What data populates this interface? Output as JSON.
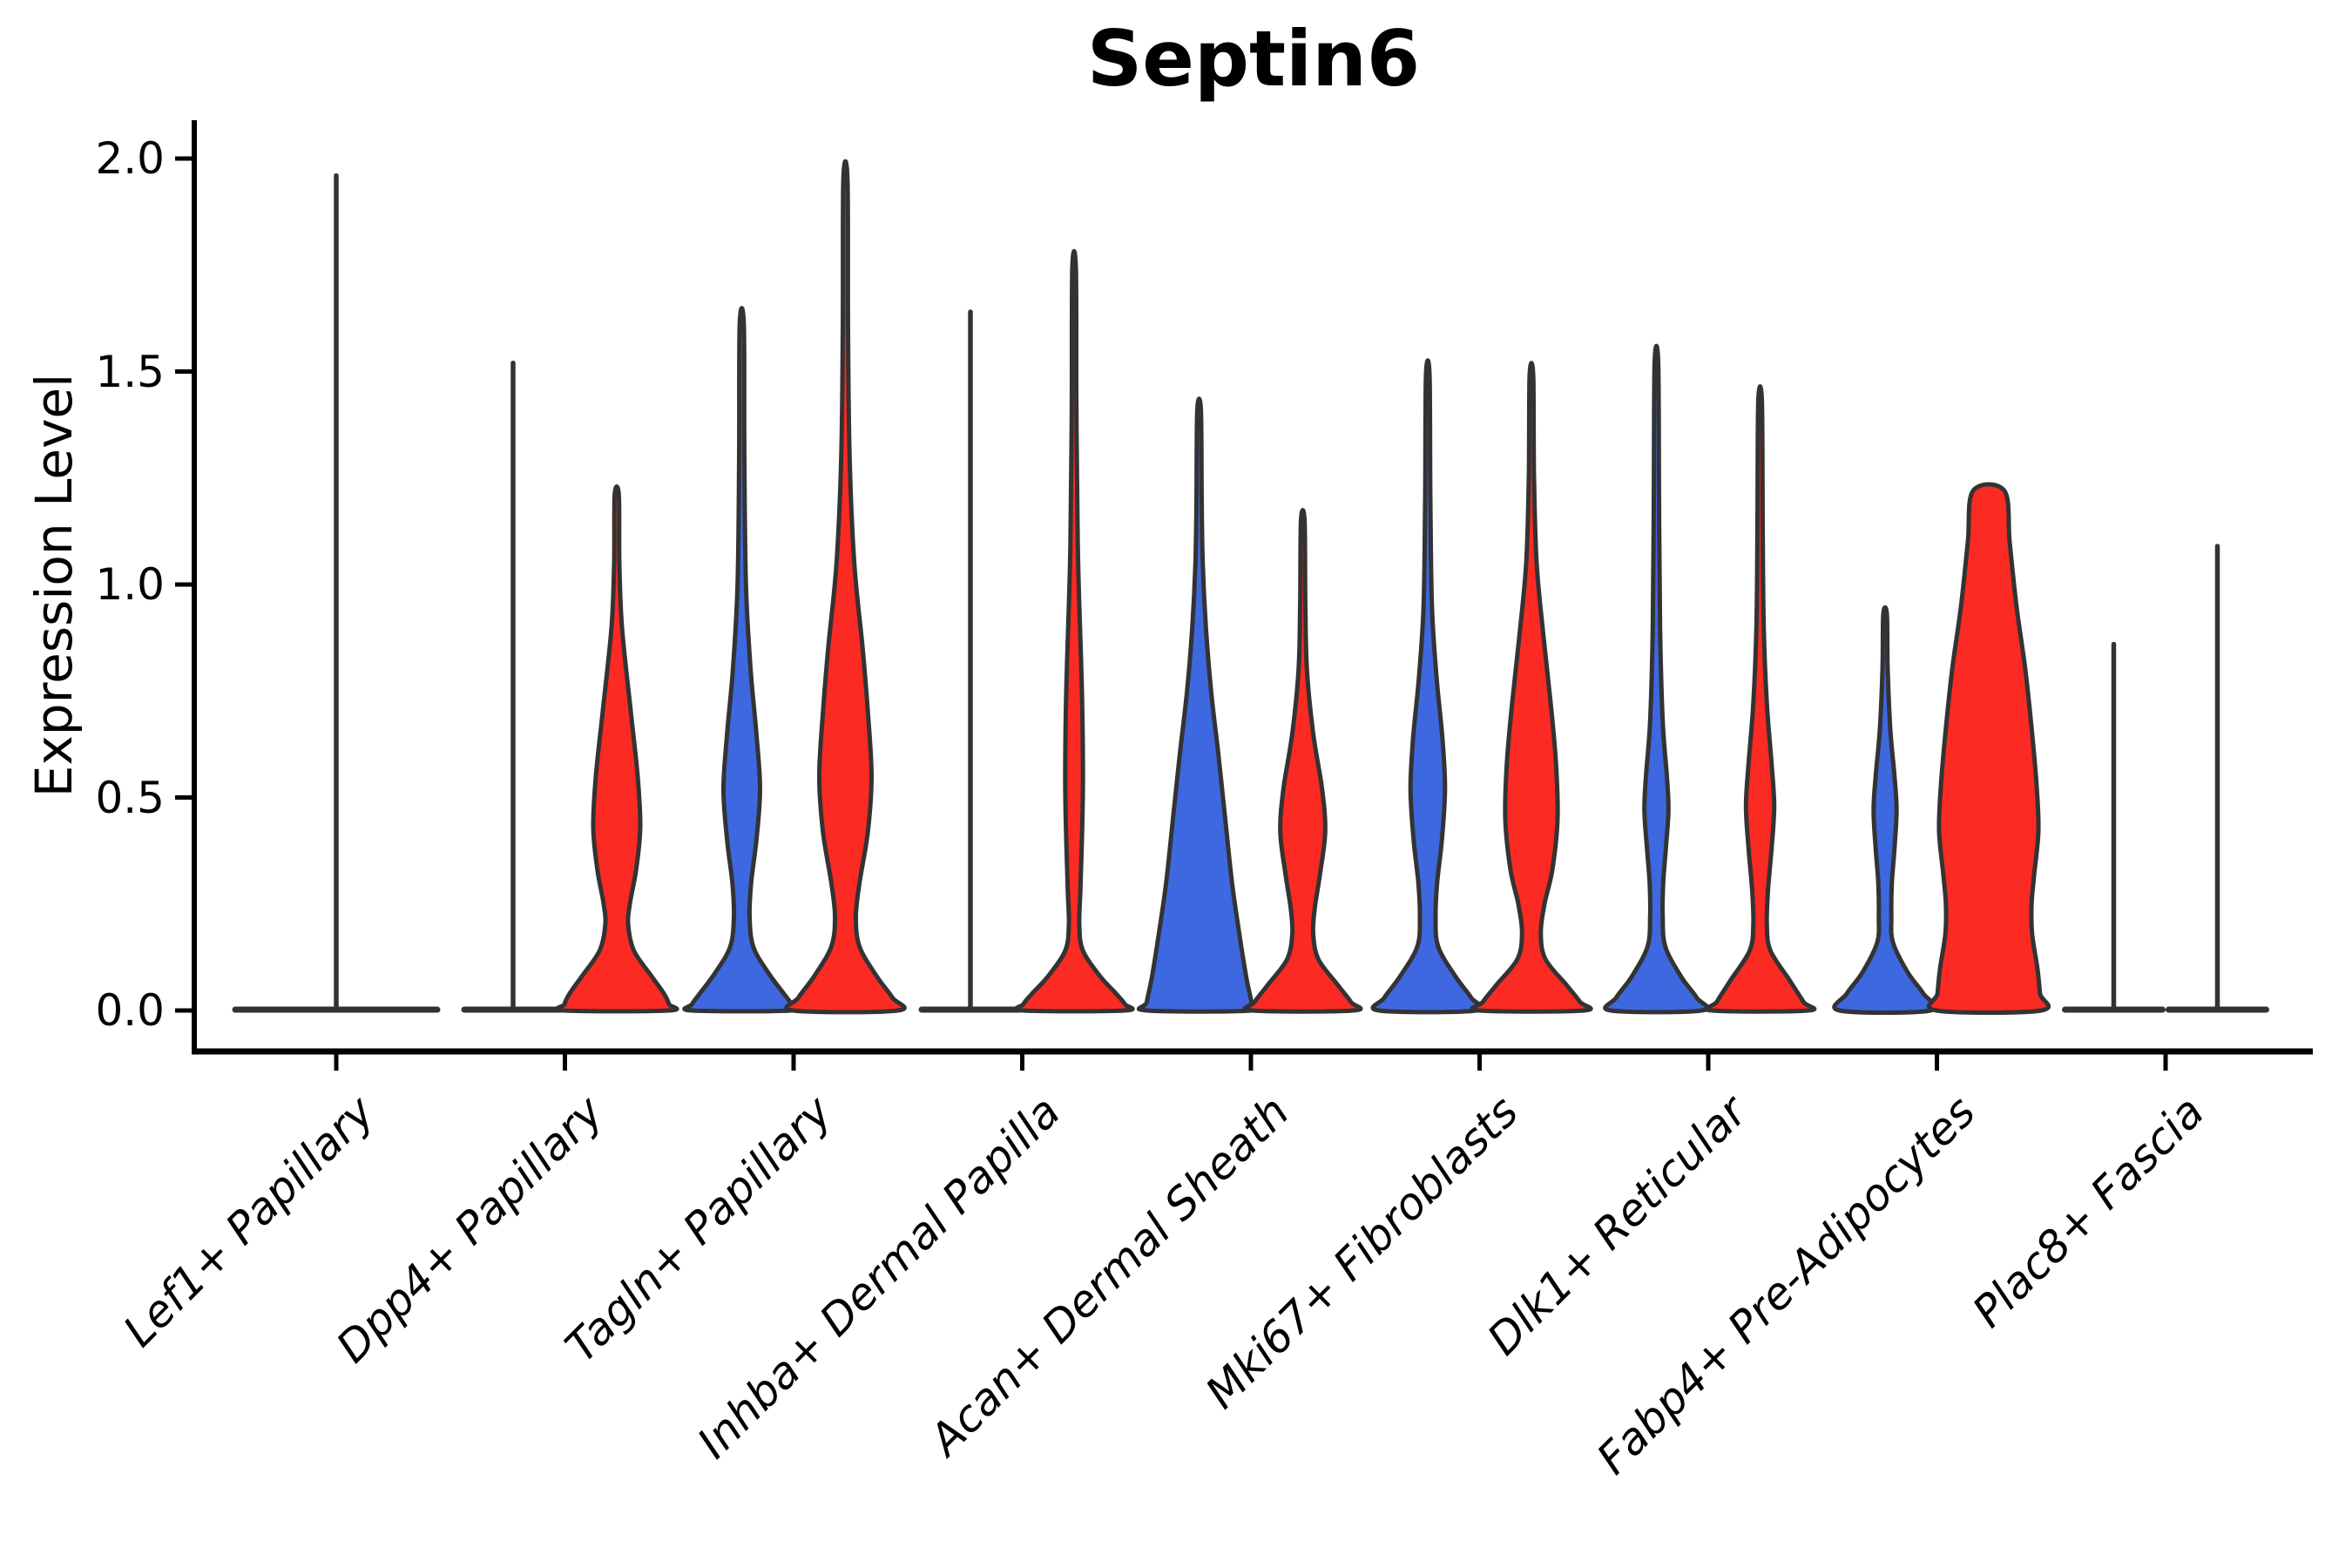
{
  "chart_data": {
    "type": "violin",
    "title": "Septin6",
    "ylabel": "Expression Level",
    "xlabel": "",
    "yticks": [
      "0.0",
      "0.5",
      "1.0",
      "1.5",
      "2.0"
    ],
    "ytick_values": [
      0.0,
      0.5,
      1.0,
      1.5,
      2.0
    ],
    "ylim": [
      0.0,
      2.1
    ],
    "grid": false,
    "legend": false,
    "colors": {
      "blue": "#3E68E0",
      "red": "#FB2A22",
      "outline": "#333333",
      "axis": "#000000"
    },
    "categories": [
      "Lef1+ Papillary",
      "Dpp4+ Papillary",
      "Tagln+ Papillary",
      "Inhba+ Dermal Papilla",
      "Acan+ Dermal Sheath",
      "Mki67+ Fibroblasts",
      "Dlk1+ Reticular",
      "Fabp4+ Pre-Adipocytes",
      "Plac8+ Fascia"
    ],
    "groups": [
      {
        "category": "Lef1+ Papillary",
        "violins": [
          {
            "pos": "full",
            "kind": "flat",
            "color": "outline",
            "max": 1.96
          }
        ]
      },
      {
        "category": "Dpp4+ Papillary",
        "violins": [
          {
            "pos": "left",
            "kind": "flat",
            "color": "blue",
            "max": 1.52
          },
          {
            "pos": "right",
            "kind": "shaped",
            "color": "red",
            "max": 1.21,
            "profile": [
              [
                1.21,
                0.04
              ],
              [
                1.05,
                0.05
              ],
              [
                0.9,
                0.1
              ],
              [
                0.7,
                0.27
              ],
              [
                0.55,
                0.4
              ],
              [
                0.43,
                0.45
              ],
              [
                0.33,
                0.37
              ],
              [
                0.25,
                0.25
              ],
              [
                0.2,
                0.22
              ],
              [
                0.14,
                0.33
              ],
              [
                0.08,
                0.67
              ],
              [
                0.04,
                0.9
              ],
              [
                0.015,
                1
              ],
              [
                0,
                1
              ]
            ]
          }
        ]
      },
      {
        "category": "Tagln+ Papillary",
        "violins": [
          {
            "pos": "left",
            "kind": "shaped",
            "color": "blue",
            "max": 1.61,
            "profile": [
              [
                1.61,
                0.04
              ],
              [
                1.3,
                0.05
              ],
              [
                1.0,
                0.08
              ],
              [
                0.8,
                0.17
              ],
              [
                0.65,
                0.28
              ],
              [
                0.52,
                0.35
              ],
              [
                0.4,
                0.28
              ],
              [
                0.3,
                0.18
              ],
              [
                0.22,
                0.15
              ],
              [
                0.15,
                0.22
              ],
              [
                0.09,
                0.5
              ],
              [
                0.04,
                0.8
              ],
              [
                0.015,
                0.95
              ],
              [
                0,
                0.95
              ]
            ]
          },
          {
            "pos": "right",
            "kind": "shaped",
            "color": "red",
            "max": 1.95,
            "profile": [
              [
                1.95,
                0.04
              ],
              [
                1.6,
                0.05
              ],
              [
                1.3,
                0.08
              ],
              [
                1.05,
                0.17
              ],
              [
                0.85,
                0.33
              ],
              [
                0.7,
                0.43
              ],
              [
                0.55,
                0.5
              ],
              [
                0.42,
                0.43
              ],
              [
                0.3,
                0.27
              ],
              [
                0.22,
                0.2
              ],
              [
                0.15,
                0.27
              ],
              [
                0.08,
                0.6
              ],
              [
                0.03,
                0.9
              ],
              [
                0,
                1
              ]
            ]
          }
        ]
      },
      {
        "category": "Inhba+ Dermal Papilla",
        "violins": [
          {
            "pos": "left",
            "kind": "flat",
            "color": "blue",
            "max": 1.64
          },
          {
            "pos": "right",
            "kind": "shaped",
            "color": "red",
            "max": 1.74,
            "profile": [
              [
                1.74,
                0.035
              ],
              [
                1.4,
                0.045
              ],
              [
                1.1,
                0.07
              ],
              [
                0.95,
                0.1
              ],
              [
                0.75,
                0.15
              ],
              [
                0.55,
                0.17
              ],
              [
                0.4,
                0.15
              ],
              [
                0.28,
                0.12
              ],
              [
                0.2,
                0.1
              ],
              [
                0.14,
                0.17
              ],
              [
                0.08,
                0.5
              ],
              [
                0.04,
                0.8
              ],
              [
                0.015,
                0.97
              ],
              [
                0,
                0.97
              ]
            ]
          }
        ]
      },
      {
        "category": "Acan+ Dermal Sheath",
        "violins": [
          {
            "pos": "left",
            "kind": "shaped",
            "color": "blue",
            "max": 1.41,
            "profile": [
              [
                1.41,
                0.035
              ],
              [
                1.2,
                0.05
              ],
              [
                1.05,
                0.07
              ],
              [
                0.9,
                0.13
              ],
              [
                0.75,
                0.23
              ],
              [
                0.6,
                0.37
              ],
              [
                0.45,
                0.5
              ],
              [
                0.3,
                0.63
              ],
              [
                0.18,
                0.77
              ],
              [
                0.08,
                0.9
              ],
              [
                0.02,
                1
              ],
              [
                0,
                1
              ]
            ]
          },
          {
            "pos": "right",
            "kind": "shaped",
            "color": "red",
            "max": 1.15,
            "profile": [
              [
                1.15,
                0.035
              ],
              [
                0.95,
                0.05
              ],
              [
                0.8,
                0.08
              ],
              [
                0.65,
                0.2
              ],
              [
                0.52,
                0.37
              ],
              [
                0.42,
                0.43
              ],
              [
                0.32,
                0.33
              ],
              [
                0.24,
                0.23
              ],
              [
                0.18,
                0.2
              ],
              [
                0.12,
                0.3
              ],
              [
                0.06,
                0.67
              ],
              [
                0.02,
                0.92
              ],
              [
                0,
                0.97
              ]
            ]
          }
        ]
      },
      {
        "category": "Mki67+ Fibroblasts",
        "violins": [
          {
            "pos": "left",
            "kind": "shaped",
            "color": "blue",
            "max": 1.49,
            "profile": [
              [
                1.49,
                0.035
              ],
              [
                1.2,
                0.05
              ],
              [
                0.95,
                0.08
              ],
              [
                0.78,
                0.17
              ],
              [
                0.64,
                0.28
              ],
              [
                0.52,
                0.33
              ],
              [
                0.4,
                0.27
              ],
              [
                0.3,
                0.18
              ],
              [
                0.22,
                0.15
              ],
              [
                0.15,
                0.2
              ],
              [
                0.08,
                0.53
              ],
              [
                0.03,
                0.83
              ],
              [
                0,
                0.93
              ]
            ]
          },
          {
            "pos": "right",
            "kind": "shaped",
            "color": "red",
            "max": 1.49,
            "profile": [
              [
                1.49,
                0.035
              ],
              [
                1.25,
                0.05
              ],
              [
                1.05,
                0.1
              ],
              [
                0.88,
                0.23
              ],
              [
                0.72,
                0.37
              ],
              [
                0.58,
                0.47
              ],
              [
                0.45,
                0.5
              ],
              [
                0.33,
                0.4
              ],
              [
                0.25,
                0.25
              ],
              [
                0.18,
                0.18
              ],
              [
                0.12,
                0.27
              ],
              [
                0.06,
                0.67
              ],
              [
                0.02,
                0.93
              ],
              [
                0,
                1
              ]
            ]
          }
        ]
      },
      {
        "category": "Dlk1+ Reticular",
        "violins": [
          {
            "pos": "left",
            "kind": "shaped",
            "color": "blue",
            "max": 1.52,
            "profile": [
              [
                1.52,
                0.035
              ],
              [
                1.2,
                0.05
              ],
              [
                0.9,
                0.07
              ],
              [
                0.68,
                0.12
              ],
              [
                0.55,
                0.2
              ],
              [
                0.47,
                0.23
              ],
              [
                0.38,
                0.18
              ],
              [
                0.3,
                0.13
              ],
              [
                0.22,
                0.12
              ],
              [
                0.15,
                0.17
              ],
              [
                0.08,
                0.47
              ],
              [
                0.03,
                0.77
              ],
              [
                0,
                0.87
              ]
            ]
          },
          {
            "pos": "right",
            "kind": "shaped",
            "color": "red",
            "max": 1.43,
            "profile": [
              [
                1.43,
                0.035
              ],
              [
                1.15,
                0.05
              ],
              [
                0.9,
                0.07
              ],
              [
                0.72,
                0.13
              ],
              [
                0.58,
                0.22
              ],
              [
                0.48,
                0.27
              ],
              [
                0.38,
                0.22
              ],
              [
                0.28,
                0.15
              ],
              [
                0.2,
                0.13
              ],
              [
                0.14,
                0.2
              ],
              [
                0.07,
                0.57
              ],
              [
                0.02,
                0.83
              ],
              [
                0,
                0.92
              ]
            ]
          }
        ]
      },
      {
        "category": "Fabp4+ Pre-Adipocytes",
        "violins": [
          {
            "pos": "left",
            "kind": "shaped",
            "color": "blue",
            "max": 0.93,
            "profile": [
              [
                0.93,
                0.035
              ],
              [
                0.8,
                0.05
              ],
              [
                0.66,
                0.1
              ],
              [
                0.55,
                0.18
              ],
              [
                0.47,
                0.22
              ],
              [
                0.38,
                0.18
              ],
              [
                0.3,
                0.13
              ],
              [
                0.22,
                0.12
              ],
              [
                0.16,
                0.15
              ],
              [
                0.09,
                0.43
              ],
              [
                0.04,
                0.73
              ],
              [
                0,
                0.87
              ]
            ]
          },
          {
            "pos": "right",
            "kind": "shaped",
            "color": "red",
            "max": 1.22,
            "profile": [
              [
                1.22,
                0.3
              ],
              [
                1.1,
                0.4
              ],
              [
                0.95,
                0.53
              ],
              [
                0.8,
                0.7
              ],
              [
                0.65,
                0.83
              ],
              [
                0.52,
                0.92
              ],
              [
                0.42,
                0.95
              ],
              [
                0.32,
                0.87
              ],
              [
                0.25,
                0.82
              ],
              [
                0.18,
                0.83
              ],
              [
                0.1,
                0.93
              ],
              [
                0.04,
                0.98
              ],
              [
                0,
                1
              ]
            ]
          }
        ]
      },
      {
        "category": "Plac8+ Fascia",
        "violins": [
          {
            "pos": "left",
            "kind": "flat",
            "color": "blue",
            "max": 0.86
          },
          {
            "pos": "right",
            "kind": "flat",
            "color": "red",
            "max": 1.09
          }
        ]
      }
    ]
  }
}
